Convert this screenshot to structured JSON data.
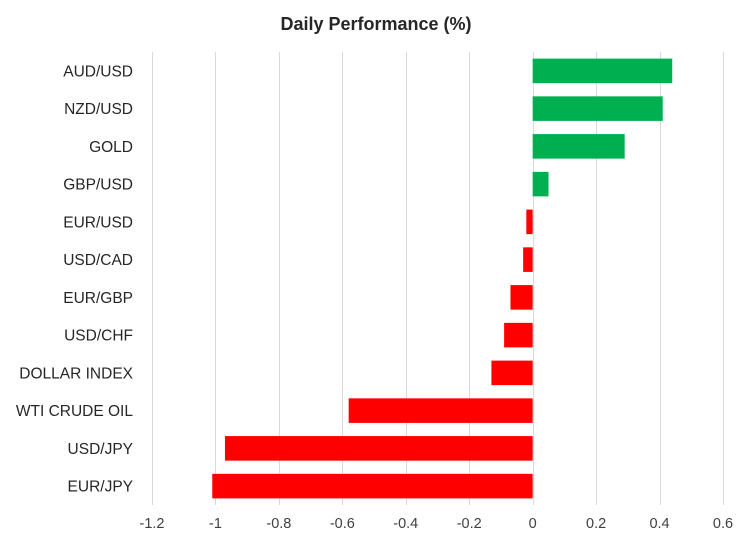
{
  "chart_data": {
    "type": "bar",
    "orientation": "horizontal",
    "title": "Daily Performance  (%)",
    "xlabel": "",
    "ylabel": "",
    "categories": [
      "AUD/USD",
      "NZD/USD",
      "GOLD",
      "GBP/USD",
      "EUR/USD",
      "USD/CAD",
      "EUR/GBP",
      "USD/CHF",
      "DOLLAR INDEX",
      "WTI CRUDE OIL",
      "USD/JPY",
      "EUR/JPY"
    ],
    "values": [
      0.44,
      0.41,
      0.29,
      0.05,
      -0.02,
      -0.03,
      -0.07,
      -0.09,
      -0.13,
      -0.58,
      -0.97,
      -1.01
    ],
    "xlim": [
      -1.2,
      0.6
    ],
    "xticks": [
      -1.2,
      -1,
      -0.8,
      -0.6,
      -0.4,
      -0.2,
      0,
      0.2,
      0.4,
      0.6
    ],
    "xtick_labels": [
      "-1.2",
      "-1",
      "-0.8",
      "-0.6",
      "-0.4",
      "-0.2",
      "0",
      "0.2",
      "0.4",
      "0.6"
    ],
    "grid": true,
    "legend": "none",
    "colors": {
      "positive": "#00b050",
      "negative": "#ff0000",
      "grid": "#d9d9d9",
      "text": "#262626"
    }
  }
}
